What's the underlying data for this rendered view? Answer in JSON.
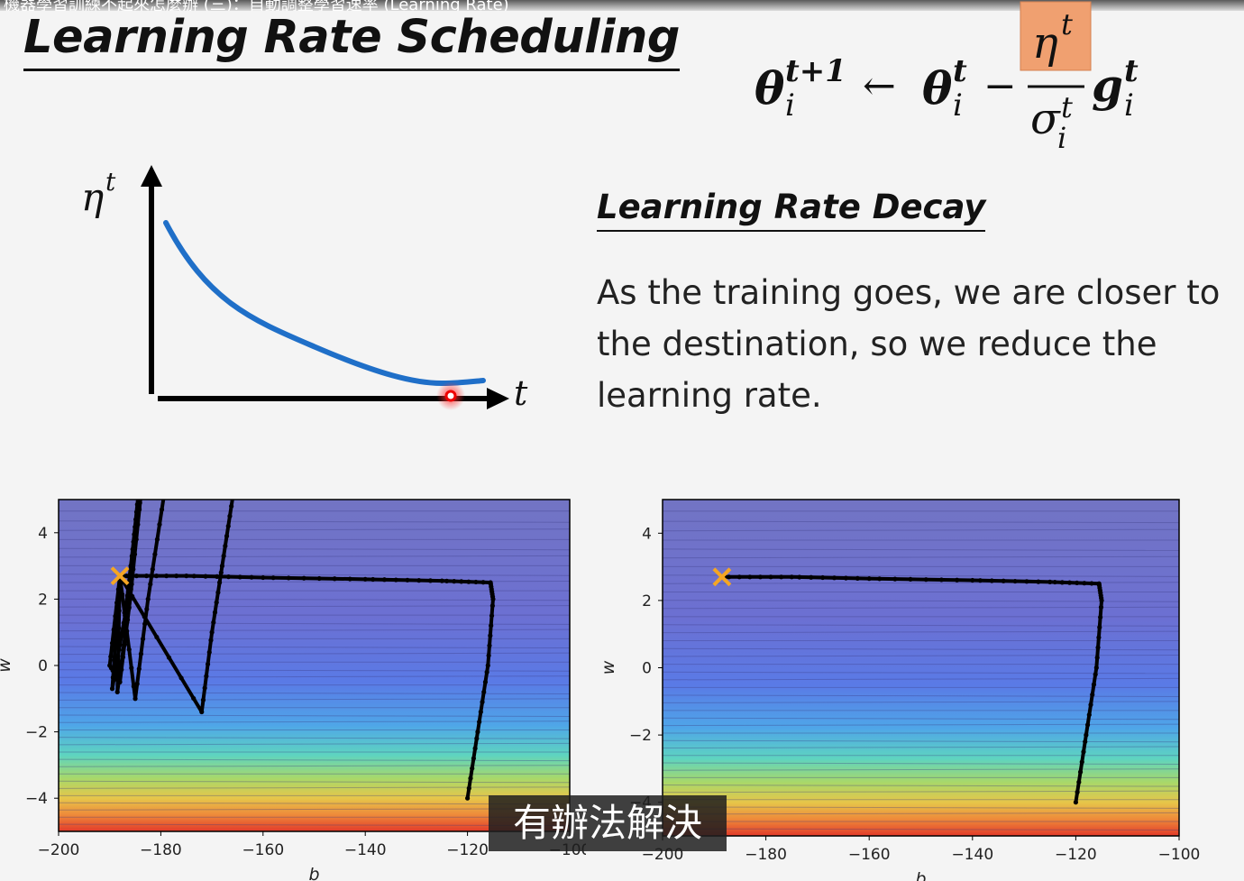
{
  "top_bar": {
    "text": "機器學習訓練不起來怎麼辦 (三)：自動調整學習速率 (Learning Rate)"
  },
  "slide": {
    "title": "Learning Rate Scheduling",
    "subtitle": "Learning Rate Decay",
    "description": "As the training goes, we are closer to the destination, so we reduce the learning rate.",
    "highlight_color": "#f0a070"
  },
  "formula": {
    "lhs_base": "θ",
    "lhs_sup": "t+1",
    "lhs_sub": "i",
    "arrow": "←",
    "theta_base": "θ",
    "theta_sup": "t",
    "theta_sub": "i",
    "minus": "−",
    "num_base": "η",
    "num_sup": "t",
    "den_base": "σ",
    "den_sup": "t",
    "den_sub": "i",
    "g_base": "g",
    "g_sup": "t",
    "g_sub": "i"
  },
  "decay_plot": {
    "y_label": "η",
    "y_label_sup": "t",
    "x_label": "t"
  },
  "caption": "有辦法解決",
  "chart_data": [
    {
      "type": "line",
      "xlabel": "b",
      "ylabel": "w",
      "xlim": [
        -200,
        -100
      ],
      "ylim": [
        -5,
        5
      ],
      "x_ticks": [
        -200,
        -180,
        -160,
        -140,
        -120,
        -100
      ],
      "x_tick_labels": [
        "−200",
        "−180",
        "−160",
        "−140",
        "−120",
        "−100"
      ],
      "y_ticks": [
        4,
        2,
        0,
        -2,
        -4
      ],
      "y_tick_labels": [
        "4",
        "2",
        "0",
        "−2",
        "−4"
      ],
      "marker": {
        "b": -188,
        "w": 2.7,
        "color": "#f5a623"
      },
      "series": [
        {
          "x": [
            -120,
            -118,
            -116,
            -115,
            -115.5,
            -125,
            -140,
            -160,
            -175,
            -188
          ],
          "y": [
            -4,
            -2,
            0,
            2,
            2.5,
            2.55,
            2.6,
            2.65,
            2.7,
            2.7
          ]
        },
        {
          "x": [
            -188,
            -190,
            -188,
            -186,
            -185,
            -184
          ],
          "y": [
            2.7,
            0,
            -0.5,
            2,
            4,
            5
          ]
        },
        {
          "x": [
            -188,
            -189.5,
            -187,
            -185.5,
            -184.5
          ],
          "y": [
            2.7,
            -0.7,
            1.5,
            3.5,
            5
          ]
        },
        {
          "x": [
            -188,
            -188.5,
            -186,
            -184
          ],
          "y": [
            2.7,
            -0.8,
            2,
            5
          ]
        },
        {
          "x": [
            -188,
            -185,
            -182.5,
            -179.5
          ],
          "y": [
            2.7,
            -1,
            2,
            5
          ]
        },
        {
          "x": [
            -188,
            -172,
            -170,
            -168,
            -166
          ],
          "y": [
            2.7,
            -1.4,
            1,
            3,
            5
          ]
        }
      ]
    },
    {
      "type": "line",
      "xlabel": "b",
      "ylabel": "w",
      "xlim": [
        -200,
        -100
      ],
      "ylim": [
        -5,
        5
      ],
      "x_ticks": [
        -200,
        -180,
        -160,
        -140,
        -120,
        -100
      ],
      "x_tick_labels": [
        "−200",
        "−180",
        "−160",
        "−140",
        "−120",
        "−100"
      ],
      "y_ticks": [
        4,
        2,
        0,
        -2,
        -4
      ],
      "y_tick_labels": [
        "4",
        "2",
        "0",
        "−2",
        "−4"
      ],
      "marker": {
        "b": -188.5,
        "w": 2.7,
        "color": "#f5a623"
      },
      "series": [
        {
          "x": [
            -120,
            -118,
            -116,
            -115,
            -115.5,
            -125,
            -140,
            -160,
            -175,
            -188.5
          ],
          "y": [
            -4,
            -2,
            0,
            2,
            2.5,
            2.55,
            2.6,
            2.65,
            2.7,
            2.7
          ]
        }
      ]
    }
  ]
}
